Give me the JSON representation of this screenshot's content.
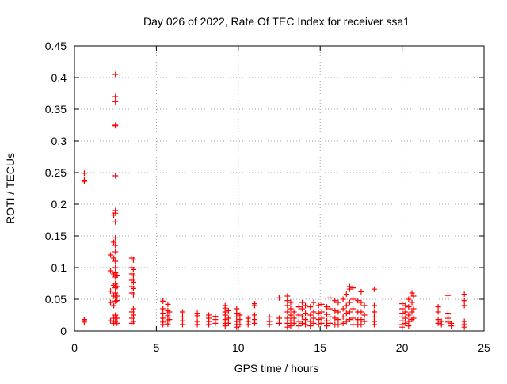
{
  "chart_data": {
    "type": "scatter",
    "title": "Day 026 of 2022, Rate Of TEC Index for receiver ssa1",
    "xlabel": "GPS time / hours",
    "ylabel": "ROTI / TECUs",
    "xlim": [
      0,
      25
    ],
    "ylim": [
      0,
      0.45
    ],
    "xticks": [
      0,
      5,
      10,
      15,
      20,
      25
    ],
    "xtick_labels": [
      "0",
      "5",
      "10",
      "15",
      "20",
      "25"
    ],
    "yticks": [
      0,
      0.05,
      0.1,
      0.15,
      0.2,
      0.25,
      0.3,
      0.35,
      0.4,
      0.45
    ],
    "ytick_labels": [
      "0",
      "0.05",
      "0.1",
      "0.15",
      "0.2",
      "0.25",
      "0.3",
      "0.35",
      "0.4",
      "0.45"
    ],
    "grid": true,
    "marker": "plus",
    "color": "#ff0000",
    "series": [
      {
        "name": "ROTI",
        "points": [
          [
            0.6,
            0.249
          ],
          [
            0.6,
            0.238
          ],
          [
            0.6,
            0.236
          ],
          [
            0.6,
            0.018
          ],
          [
            0.6,
            0.016
          ],
          [
            0.6,
            0.014
          ],
          [
            2.2,
            0.12
          ],
          [
            2.2,
            0.095
          ],
          [
            2.2,
            0.063
          ],
          [
            2.2,
            0.045
          ],
          [
            2.2,
            0.016
          ],
          [
            2.4,
            0.183
          ],
          [
            2.4,
            0.14
          ],
          [
            2.4,
            0.115
          ],
          [
            2.4,
            0.09
          ],
          [
            2.4,
            0.072
          ],
          [
            2.4,
            0.055
          ],
          [
            2.4,
            0.04
          ],
          [
            2.4,
            0.02
          ],
          [
            2.4,
            0.012
          ],
          [
            2.5,
            0.405
          ],
          [
            2.5,
            0.37
          ],
          [
            2.5,
            0.362
          ],
          [
            2.5,
            0.325
          ],
          [
            2.5,
            0.324
          ],
          [
            2.5,
            0.245
          ],
          [
            2.5,
            0.19
          ],
          [
            2.5,
            0.186
          ],
          [
            2.5,
            0.172
          ],
          [
            2.5,
            0.147
          ],
          [
            2.5,
            0.135
          ],
          [
            2.5,
            0.125
          ],
          [
            2.5,
            0.11
          ],
          [
            2.5,
            0.1
          ],
          [
            2.5,
            0.092
          ],
          [
            2.5,
            0.085
          ],
          [
            2.5,
            0.075
          ],
          [
            2.5,
            0.068
          ],
          [
            2.5,
            0.06
          ],
          [
            2.5,
            0.052
          ],
          [
            2.5,
            0.047
          ],
          [
            2.5,
            0.025
          ],
          [
            2.5,
            0.015
          ],
          [
            2.6,
            0.088
          ],
          [
            2.6,
            0.07
          ],
          [
            2.6,
            0.055
          ],
          [
            2.6,
            0.048
          ],
          [
            2.6,
            0.02
          ],
          [
            2.6,
            0.012
          ],
          [
            3.5,
            0.115
          ],
          [
            3.5,
            0.1
          ],
          [
            3.5,
            0.09
          ],
          [
            3.5,
            0.08
          ],
          [
            3.5,
            0.07
          ],
          [
            3.5,
            0.06
          ],
          [
            3.5,
            0.03
          ],
          [
            3.5,
            0.02
          ],
          [
            3.5,
            0.012
          ],
          [
            3.6,
            0.112
          ],
          [
            3.6,
            0.097
          ],
          [
            3.6,
            0.087
          ],
          [
            3.6,
            0.077
          ],
          [
            3.6,
            0.067
          ],
          [
            3.6,
            0.057
          ],
          [
            3.6,
            0.035
          ],
          [
            3.6,
            0.025
          ],
          [
            3.6,
            0.015
          ],
          [
            5.4,
            0.047
          ],
          [
            5.4,
            0.035
          ],
          [
            5.4,
            0.028
          ],
          [
            5.4,
            0.02
          ],
          [
            5.4,
            0.014
          ],
          [
            5.4,
            0.01
          ],
          [
            5.7,
            0.042
          ],
          [
            5.7,
            0.032
          ],
          [
            5.7,
            0.024
          ],
          [
            5.7,
            0.016
          ],
          [
            5.7,
            0.011
          ],
          [
            5.8,
            0.03
          ],
          [
            5.8,
            0.018
          ],
          [
            6.6,
            0.03
          ],
          [
            6.6,
            0.022
          ],
          [
            6.6,
            0.016
          ],
          [
            6.6,
            0.01
          ],
          [
            7.5,
            0.028
          ],
          [
            7.5,
            0.024
          ],
          [
            7.5,
            0.015
          ],
          [
            7.5,
            0.01
          ],
          [
            8.2,
            0.025
          ],
          [
            8.2,
            0.02
          ],
          [
            8.2,
            0.015
          ],
          [
            8.2,
            0.01
          ],
          [
            8.6,
            0.023
          ],
          [
            8.6,
            0.018
          ],
          [
            8.6,
            0.012
          ],
          [
            9.2,
            0.04
          ],
          [
            9.2,
            0.036
          ],
          [
            9.2,
            0.03
          ],
          [
            9.2,
            0.025
          ],
          [
            9.2,
            0.018
          ],
          [
            9.2,
            0.012
          ],
          [
            9.2,
            0.008
          ],
          [
            9.4,
            0.032
          ],
          [
            9.4,
            0.02
          ],
          [
            9.4,
            0.012
          ],
          [
            9.9,
            0.035
          ],
          [
            9.9,
            0.028
          ],
          [
            9.9,
            0.022
          ],
          [
            9.9,
            0.015
          ],
          [
            9.9,
            0.01
          ],
          [
            9.9,
            0.006
          ],
          [
            10.1,
            0.025
          ],
          [
            10.1,
            0.018
          ],
          [
            10.1,
            0.01
          ],
          [
            10.6,
            0.02
          ],
          [
            10.6,
            0.015
          ],
          [
            10.6,
            0.01
          ],
          [
            11.0,
            0.043
          ],
          [
            11.0,
            0.04
          ],
          [
            11.0,
            0.025
          ],
          [
            11.0,
            0.018
          ],
          [
            11.0,
            0.012
          ],
          [
            11.9,
            0.022
          ],
          [
            11.9,
            0.015
          ],
          [
            11.9,
            0.01
          ],
          [
            12.5,
            0.052
          ],
          [
            12.5,
            0.02
          ],
          [
            12.5,
            0.012
          ],
          [
            13.0,
            0.055
          ],
          [
            13.0,
            0.048
          ],
          [
            13.0,
            0.04
          ],
          [
            13.0,
            0.03
          ],
          [
            13.0,
            0.02
          ],
          [
            13.0,
            0.012
          ],
          [
            13.0,
            0.006
          ],
          [
            13.2,
            0.045
          ],
          [
            13.2,
            0.035
          ],
          [
            13.2,
            0.025
          ],
          [
            13.2,
            0.016
          ],
          [
            13.2,
            0.008
          ],
          [
            13.4,
            0.03
          ],
          [
            13.4,
            0.02
          ],
          [
            13.4,
            0.012
          ],
          [
            13.7,
            0.038
          ],
          [
            13.7,
            0.025
          ],
          [
            13.7,
            0.015
          ],
          [
            13.7,
            0.008
          ],
          [
            13.9,
            0.045
          ],
          [
            13.9,
            0.035
          ],
          [
            13.9,
            0.022
          ],
          [
            13.9,
            0.012
          ],
          [
            14.1,
            0.04
          ],
          [
            14.1,
            0.028
          ],
          [
            14.1,
            0.018
          ],
          [
            14.1,
            0.01
          ],
          [
            14.4,
            0.038
          ],
          [
            14.4,
            0.025
          ],
          [
            14.4,
            0.015
          ],
          [
            14.4,
            0.008
          ],
          [
            14.6,
            0.045
          ],
          [
            14.6,
            0.03
          ],
          [
            14.6,
            0.02
          ],
          [
            14.6,
            0.012
          ],
          [
            14.9,
            0.04
          ],
          [
            14.9,
            0.028
          ],
          [
            14.9,
            0.018
          ],
          [
            14.9,
            0.01
          ],
          [
            15.1,
            0.042
          ],
          [
            15.1,
            0.03
          ],
          [
            15.1,
            0.02
          ],
          [
            15.1,
            0.012
          ],
          [
            15.4,
            0.038
          ],
          [
            15.4,
            0.026
          ],
          [
            15.4,
            0.016
          ],
          [
            15.4,
            0.008
          ],
          [
            15.6,
            0.052
          ],
          [
            15.6,
            0.035
          ],
          [
            15.6,
            0.022
          ],
          [
            15.6,
            0.012
          ],
          [
            15.9,
            0.048
          ],
          [
            15.9,
            0.032
          ],
          [
            15.9,
            0.02
          ],
          [
            15.9,
            0.01
          ],
          [
            16.1,
            0.045
          ],
          [
            16.1,
            0.03
          ],
          [
            16.1,
            0.018
          ],
          [
            16.1,
            0.01
          ],
          [
            16.4,
            0.05
          ],
          [
            16.4,
            0.035
          ],
          [
            16.4,
            0.022
          ],
          [
            16.4,
            0.012
          ],
          [
            16.6,
            0.058
          ],
          [
            16.6,
            0.04
          ],
          [
            16.6,
            0.028
          ],
          [
            16.6,
            0.015
          ],
          [
            16.8,
            0.07
          ],
          [
            16.8,
            0.066
          ],
          [
            16.8,
            0.045
          ],
          [
            16.8,
            0.03
          ],
          [
            16.8,
            0.018
          ],
          [
            17.0,
            0.068
          ],
          [
            17.0,
            0.05
          ],
          [
            17.0,
            0.035
          ],
          [
            17.0,
            0.02
          ],
          [
            17.0,
            0.01
          ],
          [
            17.3,
            0.048
          ],
          [
            17.3,
            0.03
          ],
          [
            17.3,
            0.018
          ],
          [
            17.3,
            0.01
          ],
          [
            17.5,
            0.062
          ],
          [
            17.5,
            0.045
          ],
          [
            17.5,
            0.03
          ],
          [
            17.5,
            0.018
          ],
          [
            17.5,
            0.01
          ],
          [
            17.7,
            0.04
          ],
          [
            17.7,
            0.025
          ],
          [
            17.7,
            0.015
          ],
          [
            18.3,
            0.066
          ],
          [
            18.3,
            0.04
          ],
          [
            18.3,
            0.03
          ],
          [
            18.3,
            0.022
          ],
          [
            18.3,
            0.015
          ],
          [
            18.3,
            0.01
          ],
          [
            20.0,
            0.043
          ],
          [
            20.0,
            0.035
          ],
          [
            20.0,
            0.028
          ],
          [
            20.0,
            0.022
          ],
          [
            20.0,
            0.016
          ],
          [
            20.0,
            0.01
          ],
          [
            20.0,
            0.006
          ],
          [
            20.2,
            0.04
          ],
          [
            20.2,
            0.03
          ],
          [
            20.2,
            0.02
          ],
          [
            20.2,
            0.012
          ],
          [
            20.4,
            0.05
          ],
          [
            20.4,
            0.038
          ],
          [
            20.4,
            0.025
          ],
          [
            20.4,
            0.015
          ],
          [
            20.4,
            0.008
          ],
          [
            20.6,
            0.06
          ],
          [
            20.6,
            0.045
          ],
          [
            20.6,
            0.03
          ],
          [
            20.6,
            0.018
          ],
          [
            20.7,
            0.055
          ],
          [
            20.7,
            0.035
          ],
          [
            20.7,
            0.02
          ],
          [
            22.2,
            0.038
          ],
          [
            22.2,
            0.03
          ],
          [
            22.2,
            0.018
          ],
          [
            22.2,
            0.012
          ],
          [
            22.4,
            0.015
          ],
          [
            22.4,
            0.01
          ],
          [
            22.8,
            0.056
          ],
          [
            22.8,
            0.028
          ],
          [
            22.8,
            0.02
          ],
          [
            22.8,
            0.014
          ],
          [
            23.0,
            0.012
          ],
          [
            23.0,
            0.008
          ],
          [
            23.8,
            0.058
          ],
          [
            23.8,
            0.048
          ],
          [
            23.8,
            0.04
          ],
          [
            23.8,
            0.015
          ],
          [
            23.8,
            0.01
          ],
          [
            23.8,
            0.006
          ]
        ]
      }
    ]
  }
}
